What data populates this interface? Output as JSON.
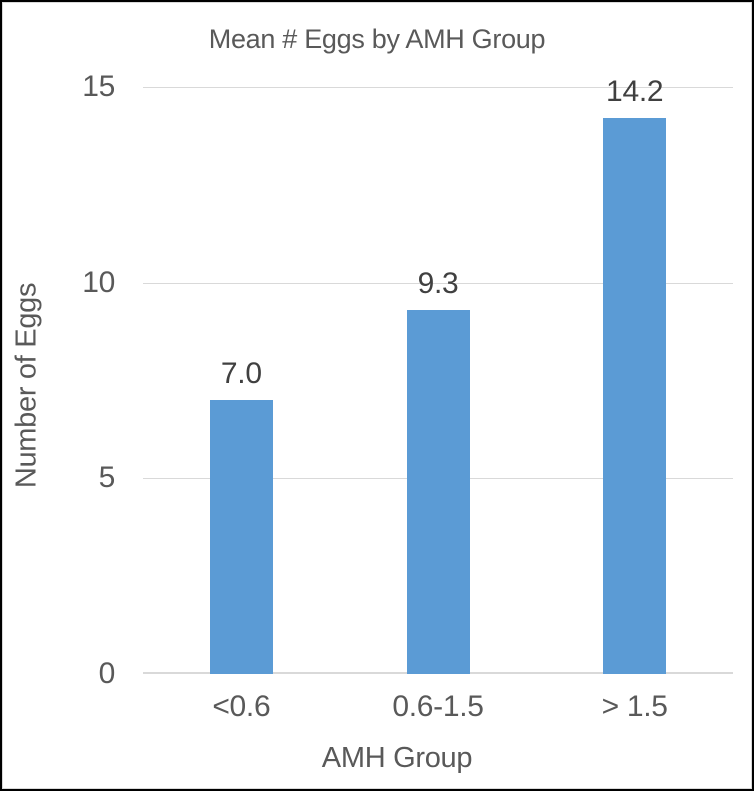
{
  "chart_data": {
    "type": "bar",
    "title": "Mean # Eggs by AMH Group",
    "xlabel": "AMH Group",
    "ylabel": "Number of Eggs",
    "categories": [
      "<0.6",
      "0.6-1.5",
      "> 1.5"
    ],
    "values": [
      7.0,
      9.3,
      14.2
    ],
    "data_labels": [
      "7.0",
      "9.3",
      "14.2"
    ],
    "ylim": [
      0,
      15
    ],
    "yticks": [
      0,
      5,
      10,
      15
    ],
    "grid": true,
    "legend": false,
    "colors": {
      "bar": "#5b9bd5",
      "axis_text": "#595959",
      "data_label_text": "#404040",
      "gridline": "#d9d9d9",
      "border": "#000000"
    }
  }
}
